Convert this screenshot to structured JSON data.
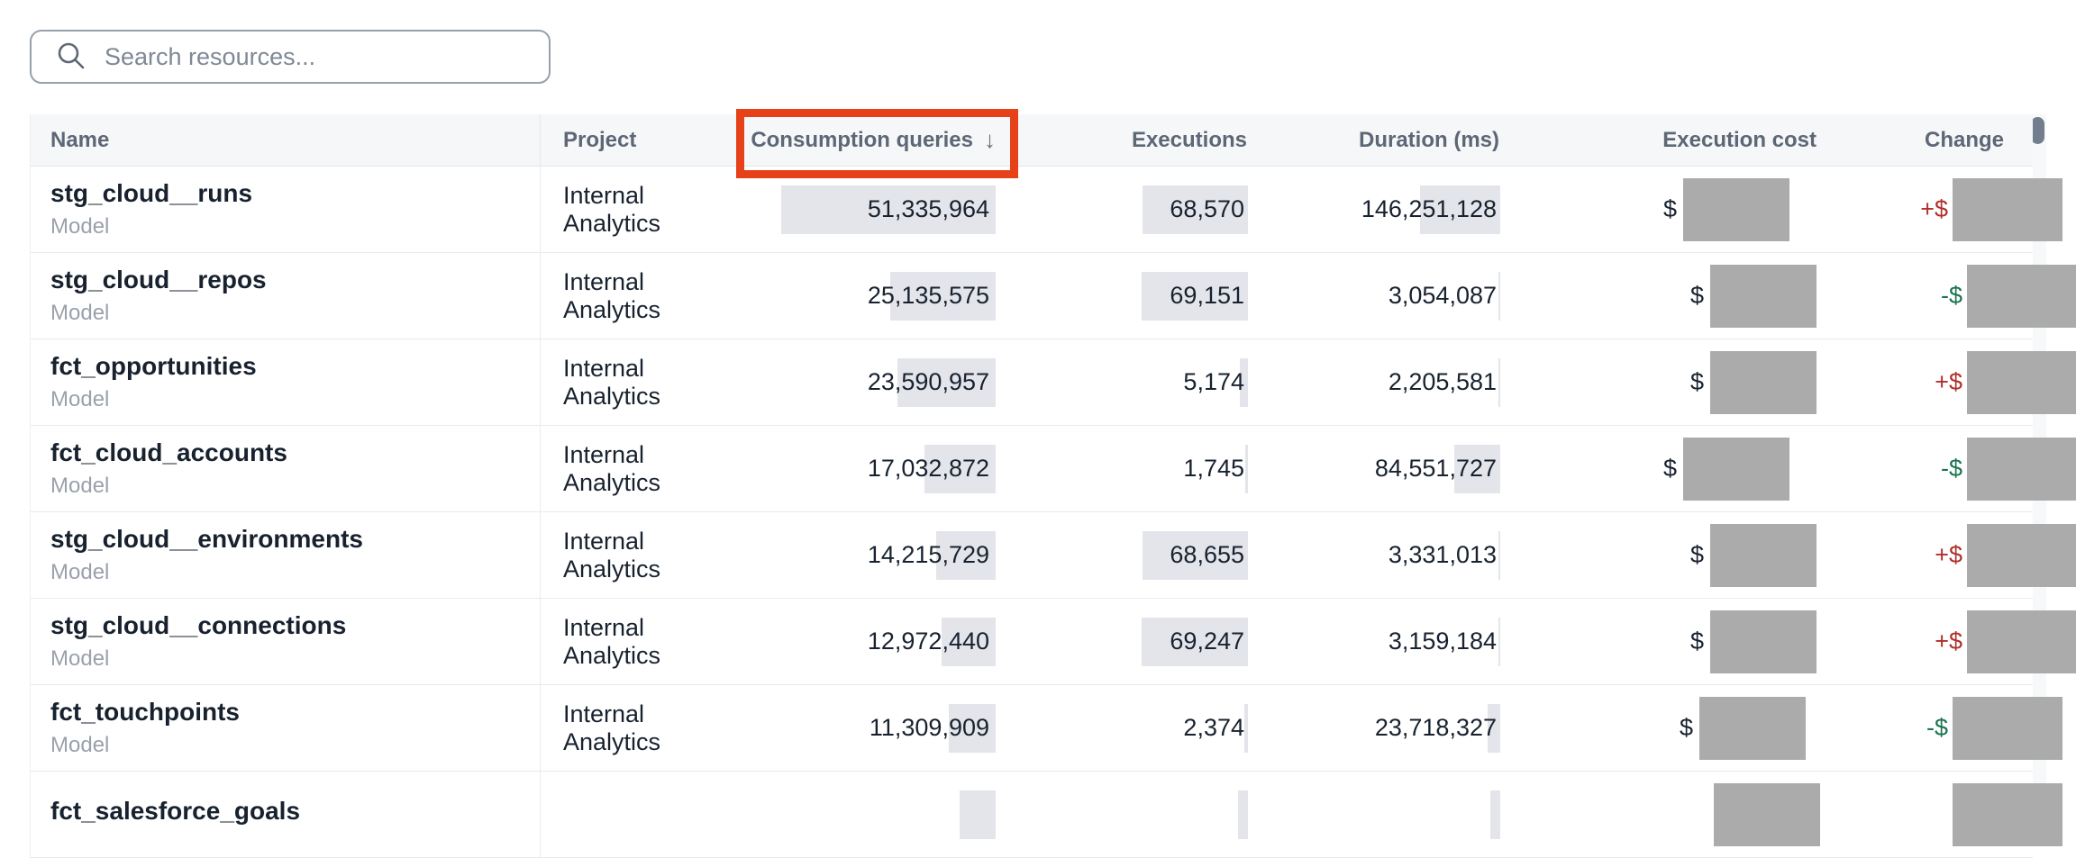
{
  "search": {
    "placeholder": "Search resources...",
    "icon": "magnifier"
  },
  "icons": {
    "search": "magnifier",
    "sort_desc": "↓"
  },
  "colors": {
    "annotation_red": "#e7411a",
    "positive_change": "#b0302b",
    "negative_change": "#1a744e",
    "redaction_gray": "#ababab",
    "value_bar_gray": "#e4e5ea",
    "header_bg": "#f6f7f8"
  },
  "annotation": {
    "target_column": "Consumption queries",
    "color": "#e7411a"
  },
  "table": {
    "columns": [
      {
        "key": "name",
        "label": "Name"
      },
      {
        "key": "project",
        "label": "Project"
      },
      {
        "key": "consumption",
        "label": "Consumption queries",
        "sort": "desc",
        "sort_icon": "↓",
        "annotated": true
      },
      {
        "key": "executions",
        "label": "Executions"
      },
      {
        "key": "duration",
        "label": "Duration (ms)"
      },
      {
        "key": "cost",
        "label": "Execution cost"
      },
      {
        "key": "change",
        "label": "Change"
      }
    ],
    "rows": [
      {
        "name": "stg_cloud__runs",
        "type": "Model",
        "project": "Internal Analytics",
        "consumption": "51,335,964",
        "executions": "68,570",
        "duration": "146,251,128",
        "cost_prefix": "$",
        "cost_redacted": true,
        "change_prefix": "+$",
        "change_redacted": true
      },
      {
        "name": "stg_cloud__repos",
        "type": "Model",
        "project": "Internal Analytics",
        "consumption": "25,135,575",
        "executions": "69,151",
        "duration": "3,054,087",
        "cost_prefix": "$",
        "cost_redacted": true,
        "change_prefix": "-$",
        "change_redacted": true
      },
      {
        "name": "fct_opportunities",
        "type": "Model",
        "project": "Internal Analytics",
        "consumption": "23,590,957",
        "executions": "5,174",
        "duration": "2,205,581",
        "cost_prefix": "$",
        "cost_redacted": true,
        "change_prefix": "+$",
        "change_redacted": true
      },
      {
        "name": "fct_cloud_accounts",
        "type": "Model",
        "project": "Internal Analytics",
        "consumption": "17,032,872",
        "executions": "1,745",
        "duration": "84,551,727",
        "cost_prefix": "$",
        "cost_redacted": true,
        "change_prefix": "-$",
        "change_redacted": true
      },
      {
        "name": "stg_cloud__environments",
        "type": "Model",
        "project": "Internal Analytics",
        "consumption": "14,215,729",
        "executions": "68,655",
        "duration": "3,331,013",
        "cost_prefix": "$",
        "cost_redacted": true,
        "change_prefix": "+$",
        "change_redacted": true
      },
      {
        "name": "stg_cloud__connections",
        "type": "Model",
        "project": "Internal Analytics",
        "consumption": "12,972,440",
        "executions": "69,247",
        "duration": "3,159,184",
        "cost_prefix": "$",
        "cost_redacted": true,
        "change_prefix": "+$",
        "change_redacted": true
      },
      {
        "name": "fct_touchpoints",
        "type": "Model",
        "project": "Internal Analytics",
        "consumption": "11,309,909",
        "executions": "2,374",
        "duration": "23,718,327",
        "cost_prefix": "$",
        "cost_redacted": true,
        "change_prefix": "-$",
        "change_redacted": true
      },
      {
        "name": "fct_salesforce_goals",
        "type": "",
        "project": "",
        "consumption": "",
        "executions": "",
        "duration": "",
        "cost_prefix": "",
        "cost_redacted": true,
        "change_prefix": "",
        "change_redacted": true,
        "partial": true
      }
    ]
  }
}
